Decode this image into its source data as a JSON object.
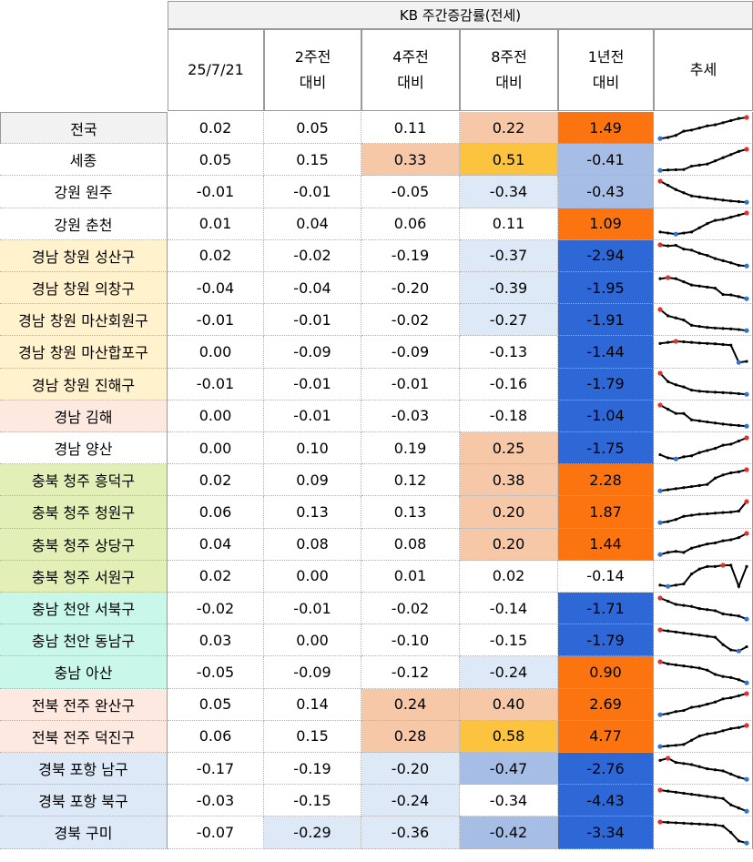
{
  "table": {
    "merged_header": "KB 주간증감률(전세)",
    "columns": [
      {
        "line1": "25/7/21",
        "line2": ""
      },
      {
        "line1": "2주전",
        "line2": "대비"
      },
      {
        "line1": "4주전",
        "line2": "대비"
      },
      {
        "line1": "8주전",
        "line2": "대비"
      },
      {
        "line1": "1년전",
        "line2": "대비"
      },
      {
        "line1": "추세",
        "line2": ""
      }
    ],
    "colors": {
      "border": "#9a9a9a",
      "cell_light_blue": "#dde9f6",
      "cell_mid_blue": "#a6bde6",
      "cell_dark_blue": "#2e67d6",
      "cell_peach": "#f6c8a8",
      "cell_yellow": "#fcc43e",
      "cell_orange": "#fb740f",
      "spark_line": "#000000",
      "spark_max": "#e03030",
      "spark_min": "#2f74d0"
    },
    "rows": [
      {
        "name": "전국",
        "bg": "#f2f2f2",
        "values": [
          "0.02",
          "0.05",
          "0.11",
          "0.22",
          "1.49"
        ],
        "cellbg": [
          "",
          "",
          "",
          "#f6c8a8",
          "#fb740f"
        ],
        "spark": [
          0,
          0.5,
          1.5,
          3.5,
          4,
          5,
          6,
          6.5,
          7.5,
          8.5,
          9.5,
          10
        ]
      },
      {
        "name": "세종",
        "bg": "#ffffff",
        "values": [
          "0.05",
          "0.15",
          "0.33",
          "0.51",
          "-0.41"
        ],
        "cellbg": [
          "",
          "",
          "#f6c8a8",
          "#fcc43e",
          "#a6bde6"
        ],
        "spark": [
          0,
          0.2,
          0.3,
          0.4,
          2,
          2.5,
          3,
          4.5,
          6,
          7.5,
          9,
          10
        ]
      },
      {
        "name": "강원 원주",
        "bg": "#ffffff",
        "values": [
          "-0.01",
          "-0.01",
          "-0.05",
          "-0.34",
          "-0.43"
        ],
        "cellbg": [
          "",
          "",
          "",
          "#dde9f6",
          "#a6bde6"
        ],
        "spark": [
          10,
          8,
          6,
          4.5,
          3,
          2.5,
          2,
          1.5,
          1,
          0.6,
          0.3,
          0
        ]
      },
      {
        "name": "강원 춘천",
        "bg": "#ffffff",
        "values": [
          "0.01",
          "0.04",
          "0.06",
          "0.11",
          "1.09"
        ],
        "cellbg": [
          "",
          "",
          "",
          "",
          "#fb740f"
        ],
        "spark": [
          1,
          0.5,
          0,
          0.5,
          1,
          3,
          5,
          6.5,
          7,
          8,
          9,
          10
        ]
      },
      {
        "name": "경남 창원 성산구",
        "bg": "#fff2cc",
        "values": [
          "0.02",
          "-0.02",
          "-0.19",
          "-0.37",
          "-2.94"
        ],
        "cellbg": [
          "",
          "",
          "",
          "#dde9f6",
          "#2e67d6"
        ],
        "spark": [
          10,
          9.5,
          9.8,
          8,
          7.5,
          6,
          5,
          3.5,
          2.5,
          1.5,
          0.3,
          0
        ]
      },
      {
        "name": "경남 창원 의창구",
        "bg": "#fff2cc",
        "values": [
          "-0.04",
          "-0.04",
          "-0.20",
          "-0.39",
          "-1.95"
        ],
        "cellbg": [
          "",
          "",
          "",
          "#dde9f6",
          "#2e67d6"
        ],
        "spark": [
          9.5,
          10,
          9.5,
          8,
          6.5,
          6,
          5.5,
          5,
          2,
          1.8,
          1,
          0
        ]
      },
      {
        "name": "경남 창원 마산회원구",
        "bg": "#fff2cc",
        "values": [
          "-0.01",
          "-0.01",
          "-0.02",
          "-0.27",
          "-1.91"
        ],
        "cellbg": [
          "",
          "",
          "",
          "#dde9f6",
          "#2e67d6"
        ],
        "spark": [
          10,
          7,
          6,
          5,
          2.5,
          2,
          1.5,
          1.2,
          1,
          0.8,
          0.5,
          0
        ]
      },
      {
        "name": "경남 창원 마산합포구",
        "bg": "#fff2cc",
        "values": [
          "0.00",
          "-0.09",
          "-0.09",
          "-0.13",
          "-1.44"
        ],
        "cellbg": [
          "",
          "",
          "",
          "",
          "#2e67d6"
        ],
        "spark": [
          9,
          9.5,
          10,
          9.8,
          9.5,
          9.2,
          9,
          8.8,
          8.5,
          8.2,
          0,
          0.5
        ]
      },
      {
        "name": "경남 창원 진해구",
        "bg": "#fff2cc",
        "values": [
          "-0.01",
          "-0.01",
          "-0.01",
          "-0.16",
          "-1.79"
        ],
        "cellbg": [
          "",
          "",
          "",
          "",
          "#2e67d6"
        ],
        "spark": [
          10,
          6,
          4.5,
          3.5,
          2,
          1.5,
          1.2,
          1,
          0.8,
          0.6,
          0.3,
          0
        ]
      },
      {
        "name": "경남 김해",
        "bg": "#fde9e0",
        "values": [
          "0.00",
          "-0.01",
          "-0.03",
          "-0.18",
          "-1.04"
        ],
        "cellbg": [
          "",
          "",
          "",
          "",
          "#2e67d6"
        ],
        "spark": [
          10,
          8,
          6,
          6,
          3,
          2.5,
          2,
          1.5,
          1,
          0.6,
          0.3,
          0
        ]
      },
      {
        "name": "경남 양산",
        "bg": "#ffffff",
        "values": [
          "0.00",
          "0.10",
          "0.19",
          "0.25",
          "-1.75"
        ],
        "cellbg": [
          "",
          "",
          "",
          "#f6c8a8",
          "#2e67d6"
        ],
        "spark": [
          2,
          0.5,
          0,
          1,
          1.5,
          3,
          4,
          5,
          6.5,
          7,
          8.5,
          10
        ]
      },
      {
        "name": "충북 청주 흥덕구",
        "bg": "#e2f0b7",
        "values": [
          "0.02",
          "0.09",
          "0.12",
          "0.38",
          "2.28"
        ],
        "cellbg": [
          "",
          "",
          "",
          "#f6c8a8",
          "#fb740f"
        ],
        "spark": [
          0,
          0.5,
          1,
          1.5,
          2,
          2.5,
          3,
          6,
          7.5,
          8.5,
          9,
          10
        ]
      },
      {
        "name": "충북 청주 청원구",
        "bg": "#e2f0b7",
        "values": [
          "0.06",
          "0.13",
          "0.13",
          "0.20",
          "1.87"
        ],
        "cellbg": [
          "",
          "",
          "",
          "#f6c8a8",
          "#fb740f"
        ],
        "spark": [
          0,
          0.5,
          1.5,
          3,
          3.5,
          4,
          4.2,
          4.5,
          4.8,
          5,
          5.5,
          10
        ]
      },
      {
        "name": "충북 청주 상당구",
        "bg": "#e2f0b7",
        "values": [
          "0.04",
          "0.08",
          "0.08",
          "0.20",
          "1.44"
        ],
        "cellbg": [
          "",
          "",
          "",
          "#f6c8a8",
          "#fb740f"
        ],
        "spark": [
          0,
          1,
          1.5,
          1,
          3,
          4,
          5,
          5.5,
          6.5,
          7,
          8,
          10
        ]
      },
      {
        "name": "충북 청주 서원구",
        "bg": "#e2f0b7",
        "values": [
          "0.02",
          "0.00",
          "0.01",
          "0.02",
          "-0.14"
        ],
        "cellbg": [
          "",
          "",
          "",
          "",
          ""
        ],
        "spark": [
          0.5,
          0,
          0.5,
          1,
          5,
          7,
          8,
          8,
          8.5,
          8.5,
          0,
          8
        ]
      },
      {
        "name": "충남 천안 서북구",
        "bg": "#c9f7e9",
        "values": [
          "-0.02",
          "-0.01",
          "-0.02",
          "-0.14",
          "-1.71"
        ],
        "cellbg": [
          "",
          "",
          "",
          "",
          "#2e67d6"
        ],
        "spark": [
          10,
          8.5,
          7,
          6.5,
          6,
          5,
          4.5,
          4,
          2.5,
          2,
          1.5,
          0
        ]
      },
      {
        "name": "충남 천안 동남구",
        "bg": "#c9f7e9",
        "values": [
          "0.03",
          "0.00",
          "-0.10",
          "-0.15",
          "-1.79"
        ],
        "cellbg": [
          "",
          "",
          "",
          "",
          "#2e67d6"
        ],
        "spark": [
          10,
          9.5,
          9,
          8.5,
          8,
          7.5,
          7,
          6.5,
          3,
          0.5,
          0,
          2
        ]
      },
      {
        "name": "충남 아산",
        "bg": "#c9f7e9",
        "values": [
          "-0.05",
          "-0.09",
          "-0.12",
          "-0.24",
          "0.90"
        ],
        "cellbg": [
          "",
          "",
          "",
          "#dde9f6",
          "#fb740f"
        ],
        "spark": [
          10,
          9,
          8.5,
          8,
          7.5,
          7,
          6,
          4,
          3,
          2.5,
          1.5,
          0
        ]
      },
      {
        "name": "전북 전주 완산구",
        "bg": "#fde9e0",
        "values": [
          "0.05",
          "0.14",
          "0.24",
          "0.40",
          "2.69"
        ],
        "cellbg": [
          "",
          "",
          "#f6c8a8",
          "#f6c8a8",
          "#fb740f"
        ],
        "spark": [
          0,
          0.5,
          1.5,
          2,
          3.5,
          4,
          5,
          6,
          7.5,
          8,
          9,
          10
        ]
      },
      {
        "name": "전북 전주 덕진구",
        "bg": "#fde9e0",
        "values": [
          "0.06",
          "0.15",
          "0.28",
          "0.58",
          "4.77"
        ],
        "cellbg": [
          "",
          "",
          "#f6c8a8",
          "#fcc43e",
          "#fb740f"
        ],
        "spark": [
          0,
          0.3,
          0.6,
          1,
          3,
          5,
          6,
          6.5,
          7.5,
          8.5,
          9,
          10
        ]
      },
      {
        "name": "경북 포항 남구",
        "bg": "#dde9f6",
        "values": [
          "-0.17",
          "-0.19",
          "-0.20",
          "-0.47",
          "-2.76"
        ],
        "cellbg": [
          "",
          "",
          "#dde9f6",
          "#a6bde6",
          "#2e67d6"
        ],
        "spark": [
          9,
          10,
          8,
          7.5,
          7,
          6,
          5,
          4.5,
          4,
          2.5,
          1,
          0
        ]
      },
      {
        "name": "경북 포항 북구",
        "bg": "#dde9f6",
        "values": [
          "-0.03",
          "-0.15",
          "-0.24",
          "-0.34",
          "-4.43"
        ],
        "cellbg": [
          "",
          "",
          "#dde9f6",
          "",
          "#2e67d6"
        ],
        "spark": [
          10,
          9.5,
          9,
          8.5,
          8,
          7.5,
          7,
          6.5,
          6,
          3,
          1.5,
          0
        ]
      },
      {
        "name": "경북 구미",
        "bg": "#dde9f6",
        "values": [
          "-0.07",
          "-0.29",
          "-0.36",
          "-0.42",
          "-3.34"
        ],
        "cellbg": [
          "",
          "#dde9f6",
          "#dde9f6",
          "#a6bde6",
          "#2e67d6"
        ],
        "spark": [
          10,
          9.8,
          9.6,
          9.4,
          9.2,
          9,
          8.8,
          8.6,
          8,
          5,
          1,
          0
        ]
      }
    ]
  }
}
